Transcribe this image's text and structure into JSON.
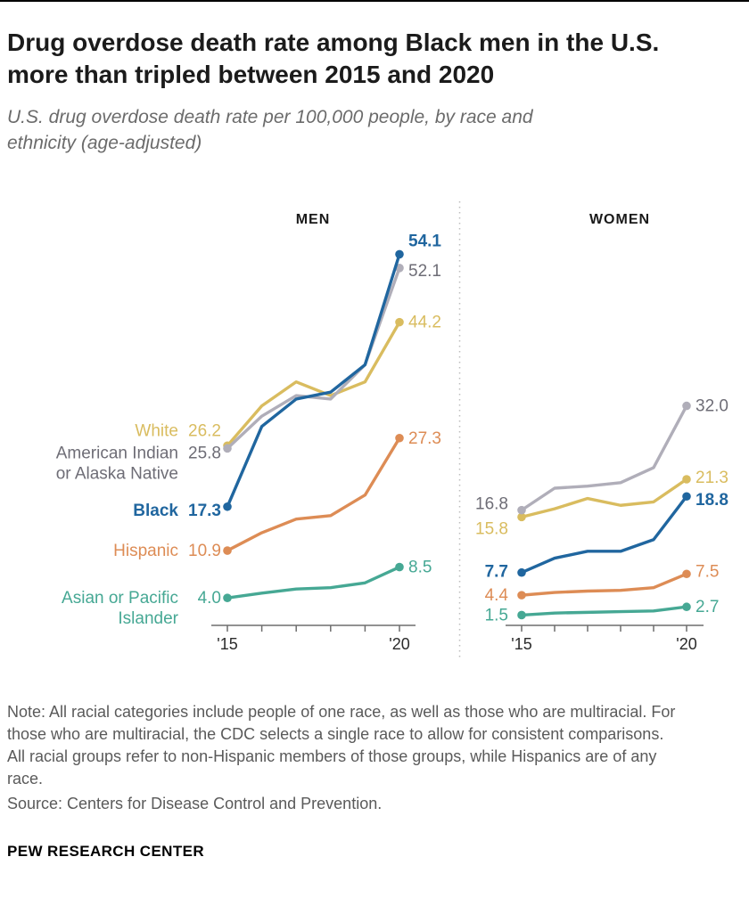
{
  "header": {
    "title": "Drug overdose death rate among Black men in the U.S. more than tripled between 2015 and 2020",
    "subtitle": "U.S. drug overdose death rate per 100,000 people, by race and ethnicity (age-adjusted)"
  },
  "chart_data": {
    "type": "line",
    "x": [
      "2015",
      "2016",
      "2017",
      "2018",
      "2019",
      "2020"
    ],
    "x_tick_labels": [
      "'15",
      "'20"
    ],
    "ylim": [
      0,
      60
    ],
    "grid": false,
    "legend_position": "inline-left",
    "panels": [
      {
        "title": "MEN",
        "series": [
          {
            "legend": "White",
            "name_lines": [
              "White"
            ],
            "color": "#d9bc5f",
            "values": [
              26.2,
              32.0,
              35.5,
              33.5,
              35.5,
              44.2
            ],
            "start_label": "26.2",
            "end_label": "44.2",
            "start_dy": -17
          },
          {
            "legend": "American Indian or Alaska Native",
            "name_lines": [
              "American Indian",
              "or Alaska Native"
            ],
            "color": "#b0aeb9",
            "label_color": "#6e6d76",
            "values": [
              25.8,
              30.5,
              33.5,
              33.0,
              38.0,
              52.1
            ],
            "start_label": "25.8",
            "end_label": "52.1",
            "start_dy": 5,
            "end_dy": 3
          },
          {
            "legend": "Hispanic",
            "name_lines": [
              "Hispanic"
            ],
            "color": "#dd8c55",
            "values": [
              10.9,
              13.5,
              15.5,
              16.0,
              19.0,
              27.3
            ],
            "start_label": "10.9",
            "end_label": "27.3"
          },
          {
            "legend": "Asian or Pacific Islander",
            "name_lines": [
              "Asian or Pacific",
              "Islander"
            ],
            "color": "#46a894",
            "values": [
              4.0,
              4.7,
              5.3,
              5.5,
              6.2,
              8.5
            ],
            "start_label": "4.0",
            "end_label": "8.5"
          },
          {
            "legend": "Black",
            "name_lines": [
              "Black"
            ],
            "color": "#20669f",
            "bold": true,
            "values": [
              17.3,
              29.0,
              33.0,
              34.0,
              38.0,
              54.1
            ],
            "start_label": "17.3",
            "end_label": "54.1",
            "start_dy": 4,
            "end_dy": -15
          }
        ]
      },
      {
        "title": "WOMEN",
        "series": [
          {
            "legend": "White",
            "color": "#d9bc5f",
            "values": [
              15.8,
              17.0,
              18.5,
              17.5,
              18.0,
              21.3
            ],
            "start_label": "15.8",
            "end_label": "21.3",
            "start_dy": 13,
            "end_dy": -2
          },
          {
            "legend": "American Indian or Alaska Native",
            "color": "#b0aeb9",
            "label_color": "#6e6d76",
            "values": [
              16.8,
              20.0,
              20.3,
              20.8,
              23.0,
              32.0
            ],
            "start_label": "16.8",
            "end_label": "32.0",
            "start_dy": -7
          },
          {
            "legend": "Hispanic",
            "color": "#dd8c55",
            "values": [
              4.4,
              4.8,
              5.0,
              5.1,
              5.5,
              7.5
            ],
            "start_label": "4.4",
            "end_label": "7.5",
            "end_dy": -3
          },
          {
            "legend": "Asian or Pacific Islander",
            "color": "#46a894",
            "values": [
              1.5,
              1.8,
              1.9,
              2.0,
              2.1,
              2.7
            ],
            "start_label": "1.5",
            "end_label": "2.7"
          },
          {
            "legend": "Black",
            "color": "#20669f",
            "bold": true,
            "values": [
              7.7,
              9.8,
              10.8,
              10.8,
              12.5,
              18.8
            ],
            "start_label": "7.7",
            "end_label": "18.8",
            "start_dy": -1,
            "end_dy": 4
          }
        ]
      }
    ]
  },
  "footer": {
    "note": "Note: All racial categories include people of one race, as well as those who are multiracial. For those who are multiracial, the CDC selects a single race to allow for consistent comparisons. All racial groups refer to non-Hispanic members of those groups, while Hispanics are of any race.",
    "source": "Source: Centers for Disease Control and Prevention.",
    "brand": "PEW RESEARCH CENTER"
  }
}
